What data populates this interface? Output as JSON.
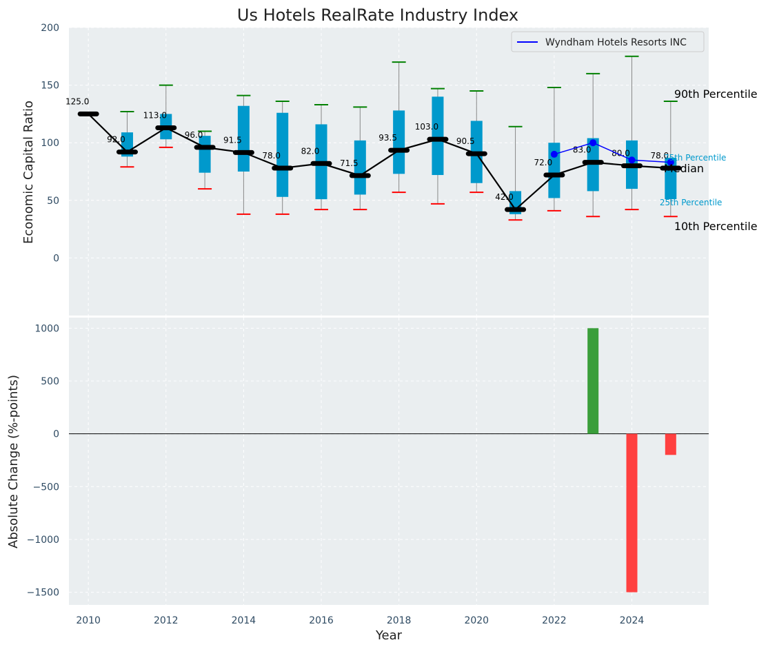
{
  "chart_data": [
    {
      "type": "box",
      "title": "Us Hotels RealRate Industry Index",
      "xlabel": "",
      "ylabel": "Economic Capital Ratio",
      "ylim": [
        -50,
        200
      ],
      "yticks": [
        0,
        50,
        100,
        150,
        200
      ],
      "grid": true,
      "legend": {
        "position": "top-right",
        "entries": [
          "Wyndham Hotels Resorts INC"
        ]
      },
      "years": [
        2010,
        2011,
        2012,
        2013,
        2014,
        2015,
        2016,
        2017,
        2018,
        2019,
        2020,
        2021,
        2022,
        2023,
        2024,
        2025
      ],
      "median": [
        125,
        92,
        113,
        96,
        91.5,
        78,
        82,
        71.5,
        93.5,
        103,
        90.5,
        42,
        72,
        83,
        80,
        78
      ],
      "median_labels": [
        "125.0",
        "92.0",
        "113.0",
        "96.0",
        "91.5",
        "78.0",
        "82.0",
        "71.5",
        "93.5",
        "103.0",
        "90.5",
        "42.0",
        "72.0",
        "83.0",
        "80.0",
        "78.0"
      ],
      "p25": [
        null,
        88,
        103,
        74,
        75,
        53,
        51,
        55,
        73,
        72,
        65,
        38,
        52,
        58,
        60,
        51
      ],
      "p75": [
        null,
        109,
        125,
        106,
        132,
        126,
        116,
        102,
        128,
        140,
        119,
        58,
        100,
        104,
        102,
        87
      ],
      "p10": [
        null,
        79,
        96,
        60,
        38,
        38,
        42,
        42,
        57,
        47,
        57,
        33,
        41,
        36,
        42,
        36
      ],
      "p90": [
        null,
        127,
        150,
        110,
        141,
        136,
        133,
        131,
        170,
        147,
        145,
        114,
        148,
        160,
        175,
        136
      ],
      "company": {
        "name": "Wyndham Hotels Resorts INC",
        "years": [
          2022,
          2023,
          2024,
          2025
        ],
        "values": [
          90,
          100,
          85,
          83
        ]
      },
      "annotations": {
        "p90": "90th Percentile",
        "p75": "75th Percentile",
        "median": "Median",
        "p25": "25th Percentile",
        "p10": "10th Percentile"
      },
      "colors": {
        "box": "#0099cc",
        "median_line": "#000000",
        "whisker": "#888888",
        "p90_cap": "#008000",
        "p10_cap": "#ff0000",
        "company": "#0000ff",
        "background": "#eaeef0"
      }
    },
    {
      "type": "bar",
      "xlabel": "Year",
      "ylabel": "Absolute Change (%-points)",
      "ylim": [
        -1620,
        1100
      ],
      "yticks": [
        -1500,
        -1000,
        -500,
        0,
        500,
        1000
      ],
      "ytick_labels": [
        "−1500",
        "−1000",
        "−500",
        "0",
        "500",
        "1000"
      ],
      "xticks": [
        2010,
        2012,
        2014,
        2016,
        2018,
        2020,
        2022,
        2024
      ],
      "bars": [
        {
          "year": 2023,
          "value": 1000,
          "color": "#3a9e3a"
        },
        {
          "year": 2024,
          "value": -1500,
          "color": "#ff4040"
        },
        {
          "year": 2025,
          "value": -200,
          "color": "#ff4040"
        }
      ],
      "grid": true
    }
  ]
}
